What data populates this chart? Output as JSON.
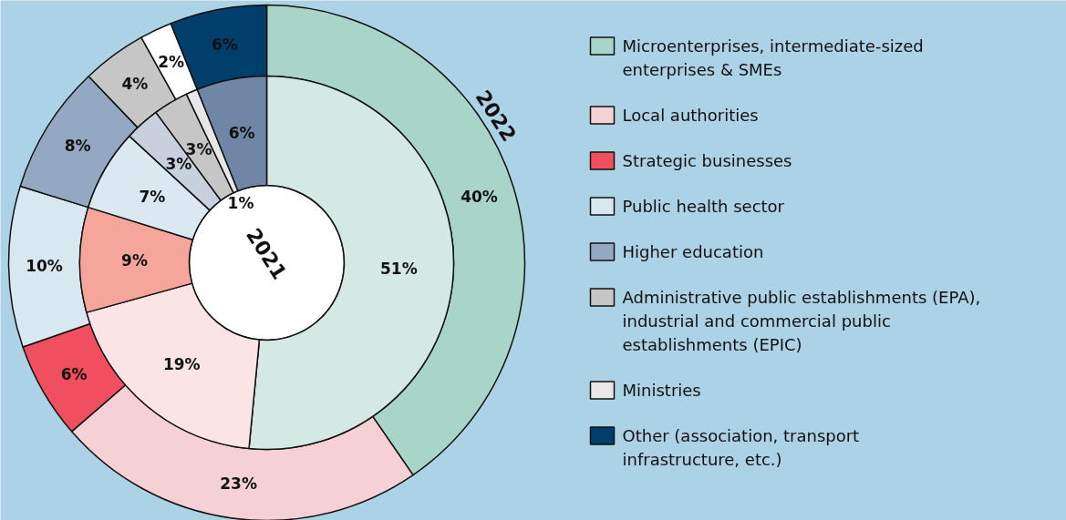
{
  "chart_data": {
    "type": "donut",
    "categories": [
      "Microenterprises, intermediate-sized enterprises & SMEs",
      "Local authorities",
      "Strategic businesses",
      "Public health sector",
      "Higher education",
      "Administrative public establishments (EPA), industrial and commercial public establishments (EPIC)",
      "Ministries",
      "Other (association, transport infrastructure, etc.)"
    ],
    "colors": [
      "#a8d5c8",
      "#f5d0d5",
      "#ef4f5e",
      "#d8e8f0",
      "#95a8c2",
      "#c6c6c6",
      "#e8e8e8",
      "#003f6b"
    ],
    "series": [
      {
        "name": "2022",
        "values": [
          40,
          23,
          6,
          10,
          8,
          4,
          2,
          6
        ],
        "value_labels": [
          "40%",
          "23%",
          "6%",
          "10%",
          "8%",
          "4%",
          "2%",
          "6%"
        ],
        "colors": [
          "#a8d5c8",
          "#f5d0d5",
          "#ef4f5e",
          "#d8e8f0",
          "#95a8c2",
          "#c6c6c6",
          "#ffffff",
          "#003f6b"
        ]
      },
      {
        "name": "2021",
        "values": [
          51,
          19,
          9,
          7,
          3,
          3,
          1,
          6
        ],
        "value_labels": [
          "51%",
          "19%",
          "9%",
          "7%",
          "3%",
          "3%",
          "1%",
          "6%"
        ],
        "colors": [
          "#d4e9e4",
          "#fae4e6",
          "#f5a59a",
          "#d9e8f1",
          "#c9d0dd",
          "#c6c6c6",
          "#e6e6e6",
          "#6f86a6"
        ]
      }
    ],
    "legend": "right"
  }
}
